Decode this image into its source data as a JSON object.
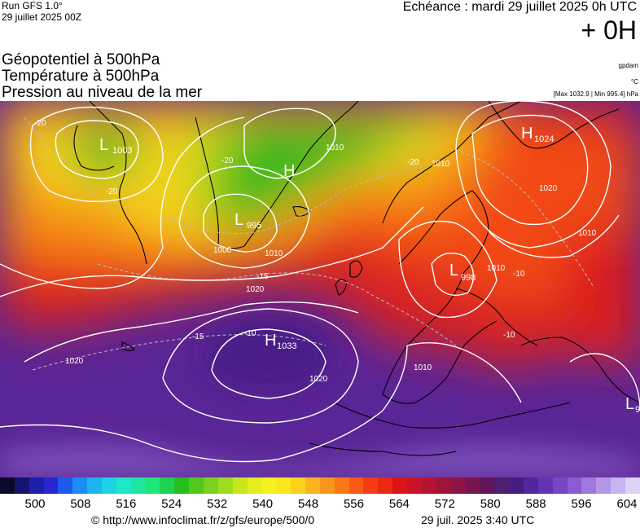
{
  "header": {
    "run": "Run GFS 1.0°",
    "run_date": "29 juillet 2025 00Z",
    "echeance": "Echéance : mardi 29 juillet 2025 0h UTC",
    "offset": "+ 0H"
  },
  "titles": {
    "geopotential": "Géopotentiel à 500hPa",
    "temperature": "Température à 500hPa",
    "pressure": "Pression au niveau de la mer"
  },
  "units": {
    "geopotential": "gpdam",
    "temperature": "°C",
    "pressure_range": "[Max 1032.9 | Min 995.4] hPa"
  },
  "pressure_centers": [
    {
      "type": "L",
      "value": "1003"
    },
    {
      "type": "H",
      "value": ""
    },
    {
      "type": "L",
      "value": "995"
    },
    {
      "type": "H",
      "value": "1024"
    },
    {
      "type": "L",
      "value": "998"
    },
    {
      "type": "H",
      "value": "1033"
    },
    {
      "type": "L",
      "value": "9"
    }
  ],
  "isobar_labels": [
    "1000",
    "1010",
    "1020",
    "1010",
    "1020",
    "1010",
    "1010",
    "1020",
    "1010",
    "1010",
    "1020"
  ],
  "isotherm_labels": [
    "-20",
    "-20",
    "-20",
    "-15",
    "-10",
    "-15",
    "-10",
    "-10",
    "-20"
  ],
  "colorbar": {
    "ticks": [
      "500",
      "508",
      "516",
      "524",
      "532",
      "540",
      "548",
      "556",
      "564",
      "572",
      "580",
      "588",
      "596",
      "604"
    ],
    "colors": [
      "#0a0a2a",
      "#14146e",
      "#1e1eaa",
      "#2828d2",
      "#1e5af0",
      "#1e8cf5",
      "#1eb4f0",
      "#1ed2e6",
      "#1ee6c8",
      "#1ee6a0",
      "#1ee678",
      "#1ed250",
      "#28be1e",
      "#50c81e",
      "#78d21e",
      "#a0dc1e",
      "#c8e61e",
      "#e6ec1e",
      "#f5f01e",
      "#fae61e",
      "#fad21e",
      "#fab41e",
      "#fa961e",
      "#fa7814",
      "#fa5a14",
      "#f53c14",
      "#eb2814",
      "#dc1414",
      "#c81428",
      "#b41432",
      "#a0143c",
      "#8c1446",
      "#781450",
      "#64145a",
      "#501e6e",
      "#461e82",
      "#50289b",
      "#6432b4",
      "#7846c3",
      "#8c5ad2",
      "#a078dc",
      "#b496e6",
      "#c8b4f0",
      "#dcd2f5"
    ]
  },
  "footer": {
    "url": "© http://www.infoclimat.fr/z/gfs/europe/500/0",
    "timestamp": "29 juil. 2025  3:40 UTC"
  }
}
